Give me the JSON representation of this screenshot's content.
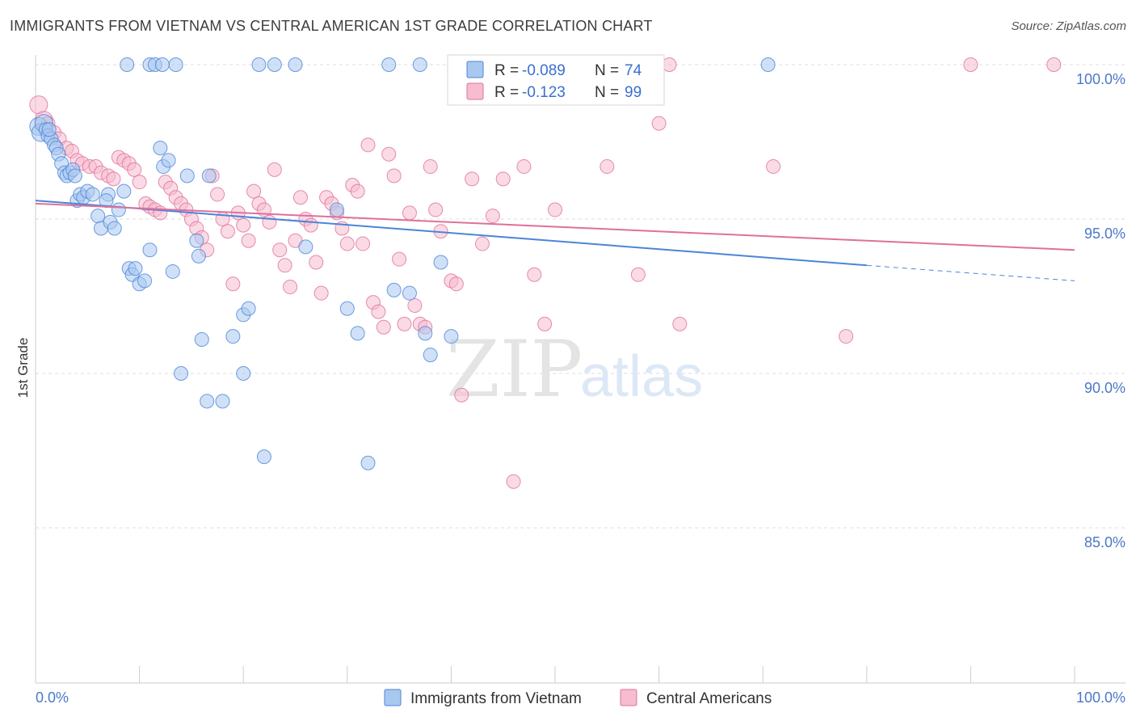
{
  "title": "IMMIGRANTS FROM VIETNAM VS CENTRAL AMERICAN 1ST GRADE CORRELATION CHART",
  "source": "Source: ZipAtlas.com",
  "watermark": {
    "part1": "ZIP",
    "part2": "atlas"
  },
  "colors": {
    "blue": "#4a85d8",
    "blue_fill": "#a9c8f0",
    "pink": "#e0709a",
    "pink_fill": "#f6bcd0",
    "axis_text": "#4a78c8"
  },
  "chart_data": {
    "type": "scatter",
    "xlabel": "",
    "ylabel": "1st Grade",
    "xlim": [
      0,
      100
    ],
    "ylim": [
      80.5,
      100.8
    ],
    "x_tick_labels": {
      "min": "0.0%",
      "max": "100.0%"
    },
    "y_ticks": [
      {
        "value": 100,
        "label": "100.0%"
      },
      {
        "value": 95,
        "label": "95.0%"
      },
      {
        "value": 90,
        "label": "90.0%"
      },
      {
        "value": 85,
        "label": "85.0%"
      }
    ],
    "grid": true,
    "legend": {
      "placement": "top-center",
      "entries": [
        {
          "r_label": "R = ",
          "r_value": "-0.089",
          "n_label": "N = ",
          "n_value": "74"
        },
        {
          "r_label": "R = ",
          "r_value": "-0.123",
          "n_label": "N = ",
          "n_value": "99"
        }
      ]
    },
    "series": [
      {
        "name": "Immigrants from Vietnam",
        "color": "#4a85d8",
        "trend": {
          "x0": 0,
          "y0": 95.6,
          "x1": 80,
          "y1": 93.5,
          "dash_to_x": 100,
          "dash_to_y": 93.0
        },
        "points": [
          [
            0.3,
            98.0
          ],
          [
            0.5,
            97.8
          ],
          [
            0.8,
            98.1
          ],
          [
            1.0,
            97.9
          ],
          [
            1.2,
            97.7
          ],
          [
            1.5,
            97.6
          ],
          [
            1.8,
            97.4
          ],
          [
            2.0,
            97.3
          ],
          [
            2.2,
            97.1
          ],
          [
            2.5,
            96.8
          ],
          [
            2.8,
            96.5
          ],
          [
            3.0,
            96.4
          ],
          [
            3.3,
            96.5
          ],
          [
            3.6,
            96.6
          ],
          [
            4.0,
            95.6
          ],
          [
            4.3,
            95.8
          ],
          [
            4.6,
            95.7
          ],
          [
            5.0,
            95.9
          ],
          [
            5.5,
            95.8
          ],
          [
            6.0,
            95.1
          ],
          [
            6.3,
            94.7
          ],
          [
            7.0,
            95.8
          ],
          [
            7.2,
            94.9
          ],
          [
            7.6,
            94.7
          ],
          [
            8.0,
            95.3
          ],
          [
            8.5,
            95.9
          ],
          [
            8.8,
            100.0
          ],
          [
            9.0,
            93.4
          ],
          [
            9.3,
            93.2
          ],
          [
            9.6,
            93.4
          ],
          [
            10.0,
            92.9
          ],
          [
            10.5,
            93.0
          ],
          [
            11.0,
            94.0
          ],
          [
            11.0,
            100.0
          ],
          [
            11.5,
            100.0
          ],
          [
            12.0,
            97.3
          ],
          [
            12.3,
            96.7
          ],
          [
            12.8,
            96.9
          ],
          [
            13.2,
            93.3
          ],
          [
            13.5,
            100.0
          ],
          [
            14.0,
            90.0
          ],
          [
            14.6,
            96.4
          ],
          [
            15.5,
            94.3
          ],
          [
            15.7,
            93.8
          ],
          [
            16.0,
            91.1
          ],
          [
            16.5,
            89.1
          ],
          [
            16.7,
            96.4
          ],
          [
            18.0,
            89.1
          ],
          [
            19.0,
            91.2
          ],
          [
            20.0,
            91.9
          ],
          [
            20.0,
            90.0
          ],
          [
            20.5,
            92.1
          ],
          [
            21.5,
            100.0
          ],
          [
            22.0,
            87.3
          ],
          [
            23.0,
            100.0
          ],
          [
            25.0,
            100.0
          ],
          [
            26.0,
            94.1
          ],
          [
            29.0,
            95.3
          ],
          [
            30.0,
            92.1
          ],
          [
            31.0,
            91.3
          ],
          [
            32.0,
            87.1
          ],
          [
            34.0,
            100.0
          ],
          [
            34.5,
            92.7
          ],
          [
            36.0,
            92.6
          ],
          [
            37.0,
            100.0
          ],
          [
            37.5,
            91.3
          ],
          [
            38.0,
            90.6
          ],
          [
            39.0,
            93.6
          ],
          [
            40.0,
            91.2
          ],
          [
            70.5,
            100.0
          ],
          [
            1.3,
            97.9
          ],
          [
            3.8,
            96.4
          ],
          [
            6.8,
            95.6
          ],
          [
            12.2,
            100.0
          ]
        ]
      },
      {
        "name": "Central Americans",
        "color": "#e0709a",
        "trend": {
          "x0": 0,
          "y0": 95.5,
          "x1": 100,
          "y1": 94.0
        },
        "points": [
          [
            0.3,
            98.7
          ],
          [
            0.8,
            98.2
          ],
          [
            1.2,
            98.1
          ],
          [
            1.8,
            97.8
          ],
          [
            2.3,
            97.6
          ],
          [
            3.0,
            97.3
          ],
          [
            3.5,
            97.2
          ],
          [
            4.0,
            96.9
          ],
          [
            4.5,
            96.8
          ],
          [
            5.2,
            96.7
          ],
          [
            5.8,
            96.7
          ],
          [
            6.3,
            96.5
          ],
          [
            7.0,
            96.4
          ],
          [
            7.5,
            96.3
          ],
          [
            8.0,
            97.0
          ],
          [
            8.5,
            96.9
          ],
          [
            9.0,
            96.8
          ],
          [
            9.5,
            96.6
          ],
          [
            10.0,
            96.2
          ],
          [
            10.6,
            95.5
          ],
          [
            11.0,
            95.4
          ],
          [
            11.5,
            95.3
          ],
          [
            12.0,
            95.2
          ],
          [
            12.5,
            96.2
          ],
          [
            13.0,
            96.0
          ],
          [
            13.5,
            95.7
          ],
          [
            14.0,
            95.5
          ],
          [
            14.5,
            95.3
          ],
          [
            15.0,
            95.0
          ],
          [
            15.5,
            94.7
          ],
          [
            16.0,
            94.4
          ],
          [
            16.5,
            94.0
          ],
          [
            17.0,
            96.4
          ],
          [
            17.5,
            95.8
          ],
          [
            18.0,
            95.0
          ],
          [
            18.5,
            94.6
          ],
          [
            19.0,
            92.9
          ],
          [
            19.5,
            95.2
          ],
          [
            20.0,
            94.8
          ],
          [
            20.5,
            94.3
          ],
          [
            21.0,
            95.9
          ],
          [
            21.5,
            95.5
          ],
          [
            22.0,
            95.3
          ],
          [
            22.5,
            94.9
          ],
          [
            23.0,
            96.6
          ],
          [
            23.5,
            94.0
          ],
          [
            24.0,
            93.5
          ],
          [
            24.5,
            92.8
          ],
          [
            25.0,
            94.3
          ],
          [
            25.5,
            95.7
          ],
          [
            26.0,
            95.0
          ],
          [
            26.5,
            94.8
          ],
          [
            27.0,
            93.6
          ],
          [
            27.5,
            92.6
          ],
          [
            28.0,
            95.7
          ],
          [
            28.5,
            95.5
          ],
          [
            29.0,
            95.2
          ],
          [
            29.5,
            94.7
          ],
          [
            30.0,
            94.2
          ],
          [
            30.5,
            96.1
          ],
          [
            31.0,
            95.9
          ],
          [
            31.5,
            94.2
          ],
          [
            32.0,
            97.4
          ],
          [
            32.5,
            92.3
          ],
          [
            33.0,
            92.0
          ],
          [
            33.5,
            91.5
          ],
          [
            34.0,
            97.1
          ],
          [
            34.5,
            96.4
          ],
          [
            35.0,
            93.7
          ],
          [
            35.5,
            91.6
          ],
          [
            36.0,
            95.2
          ],
          [
            36.5,
            92.2
          ],
          [
            37.0,
            91.6
          ],
          [
            37.5,
            91.5
          ],
          [
            38.0,
            96.7
          ],
          [
            38.5,
            95.3
          ],
          [
            39.0,
            94.6
          ],
          [
            40.0,
            93.0
          ],
          [
            40.5,
            92.9
          ],
          [
            41.0,
            89.3
          ],
          [
            42.0,
            96.3
          ],
          [
            43.0,
            94.2
          ],
          [
            44.0,
            95.1
          ],
          [
            45.0,
            96.3
          ],
          [
            46.0,
            86.5
          ],
          [
            47.0,
            96.7
          ],
          [
            48.0,
            93.2
          ],
          [
            49.0,
            91.6
          ],
          [
            50.0,
            95.3
          ],
          [
            52.0,
            100.0
          ],
          [
            55.0,
            96.7
          ],
          [
            58.0,
            93.2
          ],
          [
            60.0,
            98.1
          ],
          [
            61.0,
            100.0
          ],
          [
            62.0,
            91.6
          ],
          [
            78.0,
            91.2
          ],
          [
            90.0,
            100.0
          ],
          [
            98.0,
            100.0
          ],
          [
            71.0,
            96.7
          ]
        ]
      }
    ]
  }
}
